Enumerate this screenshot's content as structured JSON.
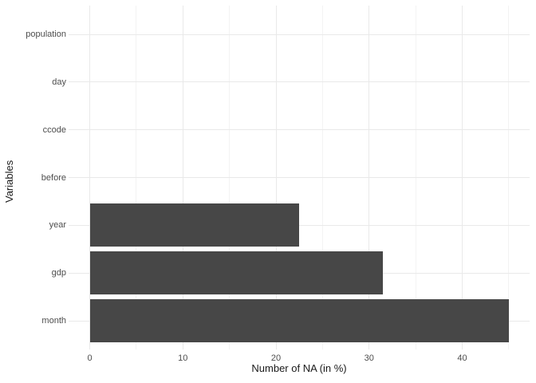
{
  "chart_data": {
    "type": "bar",
    "orientation": "horizontal",
    "title": "",
    "xlabel": "Number of NA (in %)",
    "ylabel": "Variables",
    "categories": [
      "population",
      "day",
      "ccode",
      "before",
      "year",
      "gdp",
      "month"
    ],
    "values": [
      0,
      0,
      0,
      0,
      22.5,
      31.5,
      45
    ],
    "x_major_ticks": [
      0,
      10,
      20,
      30,
      40
    ],
    "x_minor_ticks": [
      5,
      15,
      25,
      35,
      45
    ],
    "xlim": [
      -2.35,
      47.35
    ],
    "grid": "major-and-minor",
    "legend": "none",
    "colors": {
      "bar_fill": "#474747",
      "major_grid": "#e9e9e9",
      "minor_grid": "#f3f3f3",
      "axis_text": "#4d4d4d",
      "axis_title": "#1a1a1a",
      "background": "#ffffff"
    }
  }
}
